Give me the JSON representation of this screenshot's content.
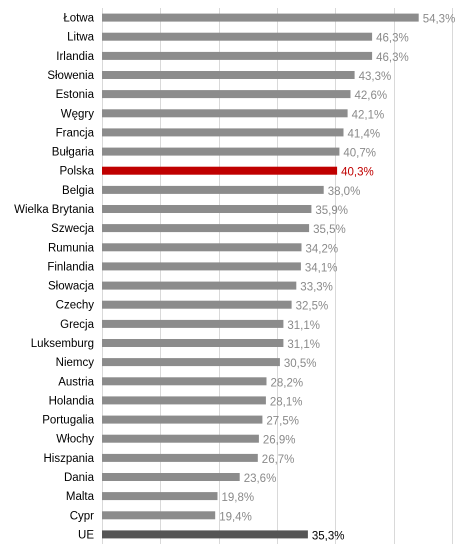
{
  "chart_data": {
    "type": "bar",
    "orientation": "horizontal",
    "title": "",
    "xlabel": "",
    "ylabel": "",
    "xlim": [
      0,
      60
    ],
    "grid": "vertical",
    "legend": "none",
    "categories": [
      "Łotwa",
      "Litwa",
      "Irlandia",
      "Słowenia",
      "Estonia",
      "Węgry",
      "Francja",
      "Bułgaria",
      "Polska",
      "Belgia",
      "Wielka Brytania",
      "Szwecja",
      "Rumunia",
      "Finlandia",
      "Słowacja",
      "Czechy",
      "Grecja",
      "Luksemburg",
      "Niemcy",
      "Austria",
      "Holandia",
      "Portugalia",
      "Włochy",
      "Hiszpania",
      "Dania",
      "Malta",
      "Cypr",
      "UE"
    ],
    "values": [
      54.3,
      46.3,
      46.3,
      43.3,
      42.6,
      42.1,
      41.4,
      40.7,
      40.3,
      38.0,
      35.9,
      35.5,
      34.2,
      34.1,
      33.3,
      32.5,
      31.1,
      31.1,
      30.5,
      28.2,
      28.1,
      27.5,
      26.9,
      26.7,
      23.6,
      19.8,
      19.4,
      35.3
    ],
    "value_labels": [
      "54,3%",
      "46,3%",
      "46,3%",
      "43,3%",
      "42,6%",
      "42,1%",
      "41,4%",
      "40,7%",
      "40,3%",
      "38,0%",
      "35,9%",
      "35,5%",
      "34,2%",
      "34,1%",
      "33,3%",
      "32,5%",
      "31,1%",
      "31,1%",
      "30,5%",
      "28,2%",
      "28,1%",
      "27,5%",
      "26,9%",
      "26,7%",
      "23,6%",
      "19,8%",
      "19,4%",
      "35,3%"
    ],
    "colors": {
      "default_bar": "#8c8c8c",
      "highlight_bar": "#c00000",
      "total_bar": "#555555",
      "default_label": "#8a8a8a",
      "highlight_label": "#c00000",
      "total_label": "#000000",
      "grid": "#d9d9d9"
    },
    "highlight_category": "Polska",
    "total_category": "UE"
  }
}
